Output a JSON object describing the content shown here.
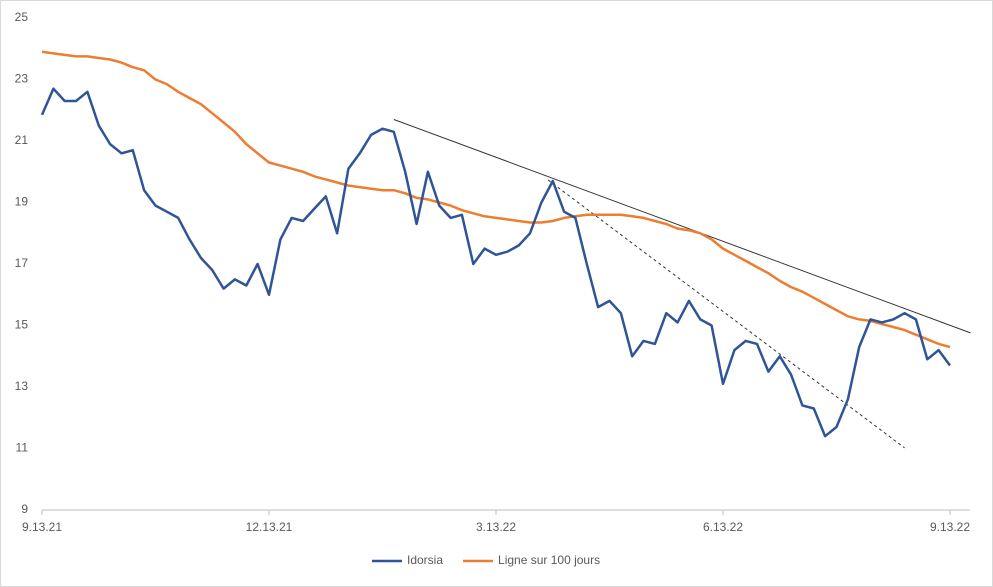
{
  "chart_data": {
    "type": "line",
    "categories": [
      "9.13.21",
      null,
      null,
      null,
      null,
      null,
      null,
      null,
      null,
      null,
      null,
      null,
      null,
      null,
      null,
      null,
      null,
      null,
      null,
      null,
      "12.13.21",
      null,
      null,
      null,
      null,
      null,
      null,
      null,
      null,
      null,
      null,
      null,
      null,
      null,
      null,
      null,
      null,
      null,
      null,
      null,
      "3.13.22",
      null,
      null,
      null,
      null,
      null,
      null,
      null,
      null,
      null,
      null,
      null,
      null,
      null,
      null,
      null,
      null,
      null,
      null,
      null,
      "6.13.22",
      null,
      null,
      null,
      null,
      null,
      null,
      null,
      null,
      null,
      null,
      null,
      null,
      null,
      null,
      null,
      null,
      null,
      null,
      null,
      "9.13.22"
    ],
    "series": [
      {
        "name": "Idorsia",
        "color": "#2f5597",
        "values": [
          21.85,
          22.7,
          22.3,
          22.3,
          22.6,
          21.5,
          20.9,
          20.6,
          20.7,
          19.4,
          18.9,
          18.7,
          18.5,
          17.8,
          17.2,
          16.8,
          16.2,
          16.5,
          16.3,
          17.0,
          16.0,
          17.8,
          18.5,
          18.4,
          18.8,
          19.2,
          18.0,
          20.1,
          20.6,
          21.2,
          21.4,
          21.3,
          20.0,
          18.3,
          20.0,
          18.9,
          18.5,
          18.6,
          17.0,
          17.5,
          17.3,
          17.4,
          17.6,
          18.0,
          19.0,
          19.7,
          18.7,
          18.5,
          17.0,
          15.6,
          15.8,
          15.4,
          14.0,
          14.5,
          14.4,
          15.4,
          15.1,
          15.8,
          15.2,
          15.0,
          13.1,
          14.2,
          14.5,
          14.4,
          13.5,
          14.0,
          13.4,
          12.4,
          12.3,
          11.4,
          11.7,
          12.6,
          14.3,
          15.2,
          15.1,
          15.2,
          15.4,
          15.2,
          13.9,
          14.2,
          13.7
        ]
      },
      {
        "name": "Ligne sur 100 jours",
        "color": "#ed7d31",
        "values": [
          23.9,
          23.85,
          23.8,
          23.75,
          23.75,
          23.7,
          23.65,
          23.55,
          23.4,
          23.3,
          23.0,
          22.85,
          22.6,
          22.4,
          22.2,
          21.9,
          21.6,
          21.3,
          20.9,
          20.6,
          20.3,
          20.2,
          20.1,
          20.0,
          19.85,
          19.75,
          19.65,
          19.55,
          19.5,
          19.45,
          19.4,
          19.4,
          19.3,
          19.15,
          19.1,
          19.0,
          18.9,
          18.75,
          18.65,
          18.55,
          18.5,
          18.45,
          18.4,
          18.35,
          18.35,
          18.4,
          18.5,
          18.55,
          18.6,
          18.6,
          18.6,
          18.6,
          18.55,
          18.5,
          18.4,
          18.3,
          18.15,
          18.1,
          18.0,
          17.8,
          17.5,
          17.3,
          17.1,
          16.9,
          16.7,
          16.45,
          16.25,
          16.1,
          15.9,
          15.7,
          15.5,
          15.3,
          15.2,
          15.15,
          15.05,
          14.95,
          14.85,
          14.7,
          14.55,
          14.4,
          14.3
        ]
      }
    ],
    "trendlines": [
      {
        "style": "solid",
        "color": "#333333",
        "points": [
          [
            31,
            21.7
          ],
          [
            81.8,
            14.76
          ]
        ]
      },
      {
        "style": "dashed",
        "color": "#333333",
        "points": [
          [
            44.6,
            19.73
          ],
          [
            76.0,
            11.02
          ]
        ]
      }
    ],
    "ylim": [
      9,
      25
    ],
    "yticks": [
      9,
      11,
      13,
      15,
      17,
      19,
      21,
      23,
      25
    ],
    "grid": false,
    "legend": "bottom"
  }
}
